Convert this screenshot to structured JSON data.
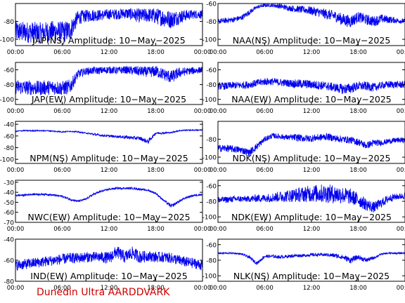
{
  "footer": "Dunedin Ultra AARDDVARK",
  "colors": {
    "trace": "#0000ee",
    "axis": "#000000",
    "footer": "#cc0000",
    "background": "#ffffff"
  },
  "chart_data": [
    {
      "type": "line",
      "title": "JAP(NS) Amplitude: 10−May−2025",
      "xlim": [
        0,
        24
      ],
      "ylim": [
        -107,
        -60
      ],
      "xticks": [
        "00:00",
        "06:00",
        "12:00",
        "18:00",
        "00:00"
      ],
      "yticks": [
        -80,
        -100
      ],
      "x": [
        0,
        1,
        2,
        3,
        4,
        5,
        6,
        7,
        8,
        9,
        10,
        11,
        12,
        13,
        14,
        15,
        16,
        17,
        18,
        19,
        20,
        21,
        22,
        23,
        24
      ],
      "y": [
        -91,
        -92,
        -92,
        -93,
        -92,
        -91,
        -92,
        -90,
        -76,
        -74,
        -73,
        -73,
        -72,
        -72,
        -71,
        -72,
        -74,
        -73,
        -74,
        -76,
        -78,
        -75,
        -73,
        -72,
        -72
      ],
      "band": [
        12,
        12,
        12,
        12,
        12,
        12,
        12,
        12,
        8,
        7,
        7,
        6,
        6,
        6,
        6,
        7,
        8,
        8,
        9,
        10,
        10,
        8,
        6,
        5,
        5
      ]
    },
    {
      "type": "line",
      "title": "NAA(NS) Amplitude: 10−May−2025",
      "xlim": [
        0,
        24
      ],
      "ylim": [
        -107,
        -60
      ],
      "xticks": [
        "00:00",
        "06:00",
        "12:00",
        "18:00",
        "00:00"
      ],
      "yticks": [
        -60,
        -80,
        -100
      ],
      "x": [
        0,
        1,
        2,
        3,
        4,
        5,
        6,
        7,
        8,
        9,
        10,
        11,
        12,
        13,
        14,
        15,
        16,
        17,
        18,
        19,
        20,
        21,
        22,
        23,
        24
      ],
      "y": [
        -80,
        -79,
        -78,
        -76,
        -70,
        -64,
        -62,
        -62,
        -63,
        -65,
        -66,
        -67,
        -68,
        -70,
        -72,
        -74,
        -78,
        -80,
        -75,
        -78,
        -80,
        -77,
        -78,
        -79,
        -80
      ],
      "band": [
        3,
        3,
        3,
        3,
        3,
        2,
        2,
        2,
        3,
        3,
        4,
        4,
        5,
        5,
        6,
        6,
        7,
        7,
        6,
        6,
        6,
        5,
        4,
        3,
        3
      ]
    },
    {
      "type": "line",
      "title": "JAP(EW) Amplitude: 10−May−2025",
      "xlim": [
        0,
        24
      ],
      "ylim": [
        -107,
        -50
      ],
      "xticks": [
        "00:00",
        "06:00",
        "12:00",
        "18:00",
        "00:00"
      ],
      "yticks": [
        -60,
        -80,
        -100
      ],
      "x": [
        0,
        1,
        2,
        3,
        4,
        5,
        6,
        7,
        8,
        9,
        10,
        11,
        12,
        13,
        14,
        15,
        16,
        17,
        18,
        19,
        20,
        21,
        22,
        23,
        24
      ],
      "y": [
        -83,
        -84,
        -84,
        -85,
        -84,
        -84,
        -85,
        -83,
        -66,
        -62,
        -61,
        -61,
        -60,
        -61,
        -60,
        -61,
        -62,
        -63,
        -62,
        -66,
        -70,
        -64,
        -62,
        -61,
        -60
      ],
      "band": [
        10,
        10,
        10,
        10,
        10,
        10,
        10,
        10,
        6,
        5,
        5,
        5,
        5,
        5,
        5,
        6,
        7,
        7,
        8,
        8,
        9,
        7,
        5,
        5,
        4
      ]
    },
    {
      "type": "line",
      "title": "NAA(EW) Amplitude: 10−May−2025",
      "xlim": [
        0,
        24
      ],
      "ylim": [
        -107,
        -50
      ],
      "xticks": [
        "00:00",
        "06:00",
        "12:00",
        "18:00",
        "00:00"
      ],
      "yticks": [
        -60,
        -80,
        -100
      ],
      "x": [
        0,
        1,
        2,
        3,
        4,
        5,
        6,
        7,
        8,
        9,
        10,
        11,
        12,
        13,
        14,
        15,
        16,
        17,
        18,
        19,
        20,
        21,
        22,
        23,
        24
      ],
      "y": [
        -82,
        -82,
        -81,
        -81,
        -80,
        -78,
        -76,
        -76,
        -77,
        -78,
        -79,
        -79,
        -80,
        -81,
        -82,
        -84,
        -86,
        -85,
        -82,
        -82,
        -84,
        -81,
        -80,
        -80,
        -80
      ],
      "band": [
        5,
        5,
        5,
        5,
        5,
        5,
        5,
        5,
        5,
        5,
        6,
        6,
        6,
        6,
        6,
        6,
        7,
        7,
        6,
        6,
        6,
        5,
        5,
        5,
        5
      ]
    },
    {
      "type": "line",
      "title": "NPM(NS) Amplitude: 10−May−2025",
      "xlim": [
        0,
        24
      ],
      "ylim": [
        -107,
        -35
      ],
      "xticks": [
        "00:00",
        "06:00",
        "12:00",
        "18:00",
        "00:00"
      ],
      "yticks": [
        -40,
        -60,
        -80,
        -100
      ],
      "x": [
        0,
        1,
        2,
        3,
        4,
        5,
        6,
        7,
        8,
        9,
        10,
        11,
        12,
        13,
        14,
        15,
        16,
        17,
        18,
        19,
        20,
        21,
        22,
        23,
        24
      ],
      "y": [
        -52,
        -51,
        -51,
        -51,
        -51,
        -52,
        -53,
        -52,
        -53,
        -55,
        -57,
        -59,
        -60,
        -61,
        -62,
        -63,
        -64,
        -70,
        -55,
        -55,
        -54,
        -51,
        -50,
        -50,
        -50
      ],
      "band": [
        1,
        1,
        1,
        1,
        1,
        1,
        1,
        1,
        1,
        1,
        2,
        2,
        2,
        2,
        3,
        3,
        3,
        4,
        2,
        2,
        1,
        1,
        1,
        1,
        1
      ]
    },
    {
      "type": "line",
      "title": "NDK(NS) Amplitude: 10−May−2025",
      "xlim": [
        0,
        24
      ],
      "ylim": [
        -107,
        -60
      ],
      "xticks": [
        "00:00",
        "06:00",
        "12:00",
        "18:00",
        "00:00"
      ],
      "yticks": [
        -80,
        -100
      ],
      "x": [
        0,
        1,
        2,
        3,
        4,
        5,
        6,
        7,
        8,
        9,
        10,
        11,
        12,
        13,
        14,
        15,
        16,
        17,
        18,
        19,
        20,
        21,
        22,
        23,
        24
      ],
      "y": [
        -90,
        -90,
        -91,
        -92,
        -95,
        -88,
        -80,
        -76,
        -77,
        -78,
        -78,
        -79,
        -79,
        -78,
        -77,
        -79,
        -80,
        -81,
        -83,
        -87,
        -84,
        -84,
        -82,
        -81,
        -81
      ],
      "band": [
        4,
        4,
        4,
        4,
        4,
        4,
        3,
        3,
        3,
        3,
        4,
        4,
        4,
        4,
        4,
        4,
        4,
        4,
        4,
        4,
        4,
        3,
        3,
        3,
        3
      ]
    },
    {
      "type": "line",
      "title": "NWC(EW) Amplitude: 10−May−2025",
      "xlim": [
        0,
        24
      ],
      "ylim": [
        -70,
        -28
      ],
      "xticks": [
        "00:00",
        "06:00",
        "12:00",
        "18:00",
        "00:00"
      ],
      "yticks": [
        -30,
        -40,
        -50,
        -60,
        -70
      ],
      "x": [
        0,
        1,
        2,
        3,
        4,
        5,
        6,
        7,
        8,
        9,
        10,
        11,
        12,
        13,
        14,
        15,
        16,
        17,
        18,
        19,
        20,
        21,
        22,
        23,
        24
      ],
      "y": [
        -43,
        -43,
        -42,
        -42,
        -42,
        -43,
        -44,
        -47,
        -49,
        -47,
        -42,
        -39,
        -37,
        -36,
        -36,
        -36,
        -37,
        -38,
        -41,
        -48,
        -54,
        -49,
        -45,
        -43,
        -42
      ],
      "band": [
        1,
        1,
        1,
        1,
        1,
        1,
        1,
        1,
        1,
        1,
        1,
        1,
        1,
        1,
        1,
        1,
        1,
        1,
        1,
        1,
        2,
        1,
        1,
        1,
        1
      ]
    },
    {
      "type": "line",
      "title": "NDK(EW) Amplitude: 10−May−2025",
      "xlim": [
        0,
        24
      ],
      "ylim": [
        -107,
        -53
      ],
      "xticks": [
        "00:00",
        "06:00",
        "12:00",
        "18:00",
        "00:00"
      ],
      "yticks": [
        -60,
        -80,
        -100
      ],
      "x": [
        0,
        1,
        2,
        3,
        4,
        5,
        6,
        7,
        8,
        9,
        10,
        11,
        12,
        13,
        14,
        15,
        16,
        17,
        18,
        19,
        20,
        21,
        22,
        23,
        24
      ],
      "y": [
        -78,
        -78,
        -77,
        -77,
        -77,
        -76,
        -76,
        -75,
        -74,
        -73,
        -72,
        -71,
        -70,
        -70,
        -70,
        -71,
        -72,
        -74,
        -78,
        -84,
        -88,
        -82,
        -76,
        -74,
        -73
      ],
      "band": [
        4,
        4,
        4,
        4,
        4,
        5,
        5,
        6,
        7,
        8,
        9,
        10,
        11,
        12,
        12,
        12,
        11,
        10,
        9,
        8,
        7,
        6,
        5,
        4,
        4
      ]
    },
    {
      "type": "line",
      "title": "IND(EW) Amplitude: 10−May−2025",
      "xlim": [
        0,
        24
      ],
      "ylim": [
        -80,
        -40
      ],
      "xticks": [
        "00:00",
        "06:00",
        "12:00",
        "18:00",
        "00:00"
      ],
      "yticks": [
        -40,
        -60,
        -80
      ],
      "x": [
        0,
        1,
        2,
        3,
        4,
        5,
        6,
        7,
        8,
        9,
        10,
        11,
        12,
        13,
        14,
        15,
        16,
        17,
        18,
        19,
        20,
        21,
        22,
        23,
        24
      ],
      "y": [
        -65,
        -64,
        -63,
        -62,
        -61,
        -60,
        -59,
        -58,
        -58,
        -57,
        -57,
        -57,
        -58,
        -52,
        -57,
        -53,
        -57,
        -56,
        -57,
        -57,
        -58,
        -60,
        -62,
        -63,
        -65
      ],
      "band": [
        5,
        5,
        5,
        5,
        5,
        5,
        5,
        5,
        5,
        5,
        5,
        5,
        6,
        6,
        6,
        6,
        6,
        5,
        5,
        5,
        5,
        5,
        5,
        5,
        5
      ]
    },
    {
      "type": "line",
      "title": "NLK(NS) Amplitude: 10−May−2025",
      "xlim": [
        0,
        24
      ],
      "ylim": [
        -107,
        -53
      ],
      "xticks": [
        "00:00",
        "06:00",
        "12:00",
        "18:00",
        "00:00"
      ],
      "yticks": [
        -60,
        -80,
        -100
      ],
      "x": [
        0,
        1,
        2,
        3,
        4,
        5,
        6,
        7,
        8,
        9,
        10,
        11,
        12,
        13,
        14,
        15,
        16,
        17,
        18,
        19,
        20,
        21,
        22,
        23,
        24
      ],
      "y": [
        -71,
        -71,
        -71,
        -72,
        -76,
        -84,
        -75,
        -75,
        -76,
        -75,
        -74,
        -74,
        -73,
        -73,
        -73,
        -74,
        -76,
        -80,
        -76,
        -80,
        -77,
        -72,
        -71,
        -71,
        -71
      ],
      "band": [
        1,
        1,
        1,
        1,
        2,
        2,
        2,
        2,
        2,
        2,
        2,
        2,
        2,
        2,
        2,
        3,
        3,
        4,
        3,
        3,
        2,
        1,
        1,
        1,
        1
      ]
    }
  ]
}
